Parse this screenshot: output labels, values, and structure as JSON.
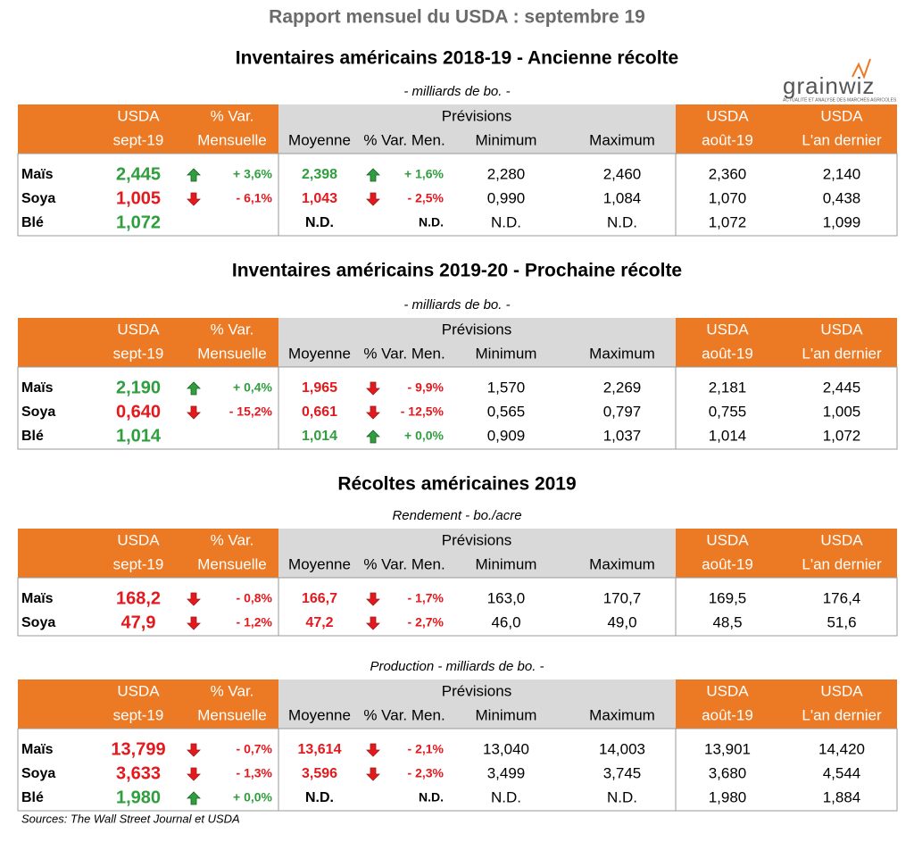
{
  "header": {
    "title": "Rapport mensuel du USDA : septembre 19",
    "logo": "grainwiz",
    "logo_tagline": "ACTUALITÉ ET ANALYSE DES MARCHÉS AGRICOLES"
  },
  "columns": {
    "usda": [
      "USDA",
      "sept-19"
    ],
    "var": [
      "% Var.",
      "Mensuelle"
    ],
    "previsions": "Prévisions",
    "moyenne": "Moyenne",
    "var_men": "% Var. Men.",
    "minimum": "Minimum",
    "maximum": "Maximum",
    "aout": [
      "USDA",
      "août-19"
    ],
    "an": [
      "USDA",
      "L'an dernier"
    ]
  },
  "colors": {
    "green": "#2e9e3e",
    "red": "#e3191e",
    "orange": "#ec7a24",
    "gray": "#d9d9d9"
  },
  "sections": [
    {
      "title": "Inventaires américains 2018-19 - Ancienne récolte",
      "unit": "- milliards de bo.  -",
      "rows": [
        {
          "name": "Maïs",
          "usda": {
            "text": "2,445",
            "color": "green"
          },
          "usda_trend": "up",
          "usda_var": "+ 3,6%",
          "moy": {
            "text": "2,398",
            "color": "green"
          },
          "moy_trend": "up",
          "moy_var": "+ 1,6%",
          "min": "2,280",
          "max": "2,460",
          "aout": "2,360",
          "an": "2,140"
        },
        {
          "name": "Soya",
          "usda": {
            "text": "1,005",
            "color": "red"
          },
          "usda_trend": "down",
          "usda_var": "- 6,1%",
          "moy": {
            "text": "1,043",
            "color": "red"
          },
          "moy_trend": "down",
          "moy_var": "- 2,5%",
          "min": "0,990",
          "max": "1,084",
          "aout": "1,070",
          "an": "0,438"
        },
        {
          "name": "Blé",
          "usda": {
            "text": "1,072",
            "color": "green"
          },
          "moy": {
            "text": "N.D."
          },
          "moy_var": "N.D.",
          "min": "N.D.",
          "max": "N.D.",
          "aout": "1,072",
          "an": "1,099"
        }
      ]
    },
    {
      "title": "Inventaires américains 2019-20 - Prochaine récolte",
      "unit": "- milliards de bo.  -",
      "rows": [
        {
          "name": "Maïs",
          "usda": {
            "text": "2,190",
            "color": "green"
          },
          "usda_trend": "up",
          "usda_var": "+ 0,4%",
          "moy": {
            "text": "1,965",
            "color": "red"
          },
          "moy_trend": "down",
          "moy_var": "- 9,9%",
          "min": "1,570",
          "max": "2,269",
          "aout": "2,181",
          "an": "2,445"
        },
        {
          "name": "Soya",
          "usda": {
            "text": "0,640",
            "color": "red"
          },
          "usda_trend": "down",
          "usda_var": "- 15,2%",
          "moy": {
            "text": "0,661",
            "color": "red"
          },
          "moy_trend": "down",
          "moy_var": "- 12,5%",
          "min": "0,565",
          "max": "0,797",
          "aout": "0,755",
          "an": "1,005"
        },
        {
          "name": "Blé",
          "usda": {
            "text": "1,014",
            "color": "green"
          },
          "moy": {
            "text": "1,014",
            "color": "green"
          },
          "moy_trend": "up",
          "moy_var": "+ 0,0%",
          "min": "0,909",
          "max": "1,037",
          "aout": "1,014",
          "an": "1,072"
        }
      ]
    },
    {
      "title": "Récoltes américaines 2019",
      "unit": "Rendement - bo./acre",
      "rows": [
        {
          "name": "Maïs",
          "usda": {
            "text": "168,2",
            "color": "red"
          },
          "usda_trend": "down",
          "usda_var": "- 0,8%",
          "moy": {
            "text": "166,7",
            "color": "red"
          },
          "moy_trend": "down",
          "moy_var": "- 1,7%",
          "min": "163,0",
          "max": "170,7",
          "aout": "169,5",
          "an": "176,4"
        },
        {
          "name": "Soya",
          "usda": {
            "text": "47,9",
            "color": "red"
          },
          "usda_trend": "down",
          "usda_var": "- 1,2%",
          "moy": {
            "text": "47,2",
            "color": "red"
          },
          "moy_trend": "down",
          "moy_var": "- 2,7%",
          "min": "46,0",
          "max": "49,0",
          "aout": "48,5",
          "an": "51,6"
        }
      ]
    },
    {
      "unit": "Production - milliards de bo. -",
      "rows": [
        {
          "name": "Maïs",
          "usda": {
            "text": "13,799",
            "color": "red"
          },
          "usda_trend": "down",
          "usda_var": "- 0,7%",
          "moy": {
            "text": "13,614",
            "color": "red"
          },
          "moy_trend": "down",
          "moy_var": "- 2,1%",
          "min": "13,040",
          "max": "14,003",
          "aout": "13,901",
          "an": "14,420"
        },
        {
          "name": "Soya",
          "usda": {
            "text": "3,633",
            "color": "red"
          },
          "usda_trend": "down",
          "usda_var": "- 1,3%",
          "moy": {
            "text": "3,596",
            "color": "red"
          },
          "moy_trend": "down",
          "moy_var": "- 2,3%",
          "min": "3,499",
          "max": "3,745",
          "aout": "3,680",
          "an": "4,544"
        },
        {
          "name": "Blé",
          "usda": {
            "text": "1,980",
            "color": "green"
          },
          "usda_trend": "up",
          "usda_var": "+ 0,0%",
          "moy": {
            "text": "N.D."
          },
          "moy_var": "N.D.",
          "min": "N.D.",
          "max": "N.D.",
          "aout": "1,980",
          "an": "1,884"
        }
      ]
    }
  ],
  "footer": "Sources: The Wall Street Journal et USDA"
}
